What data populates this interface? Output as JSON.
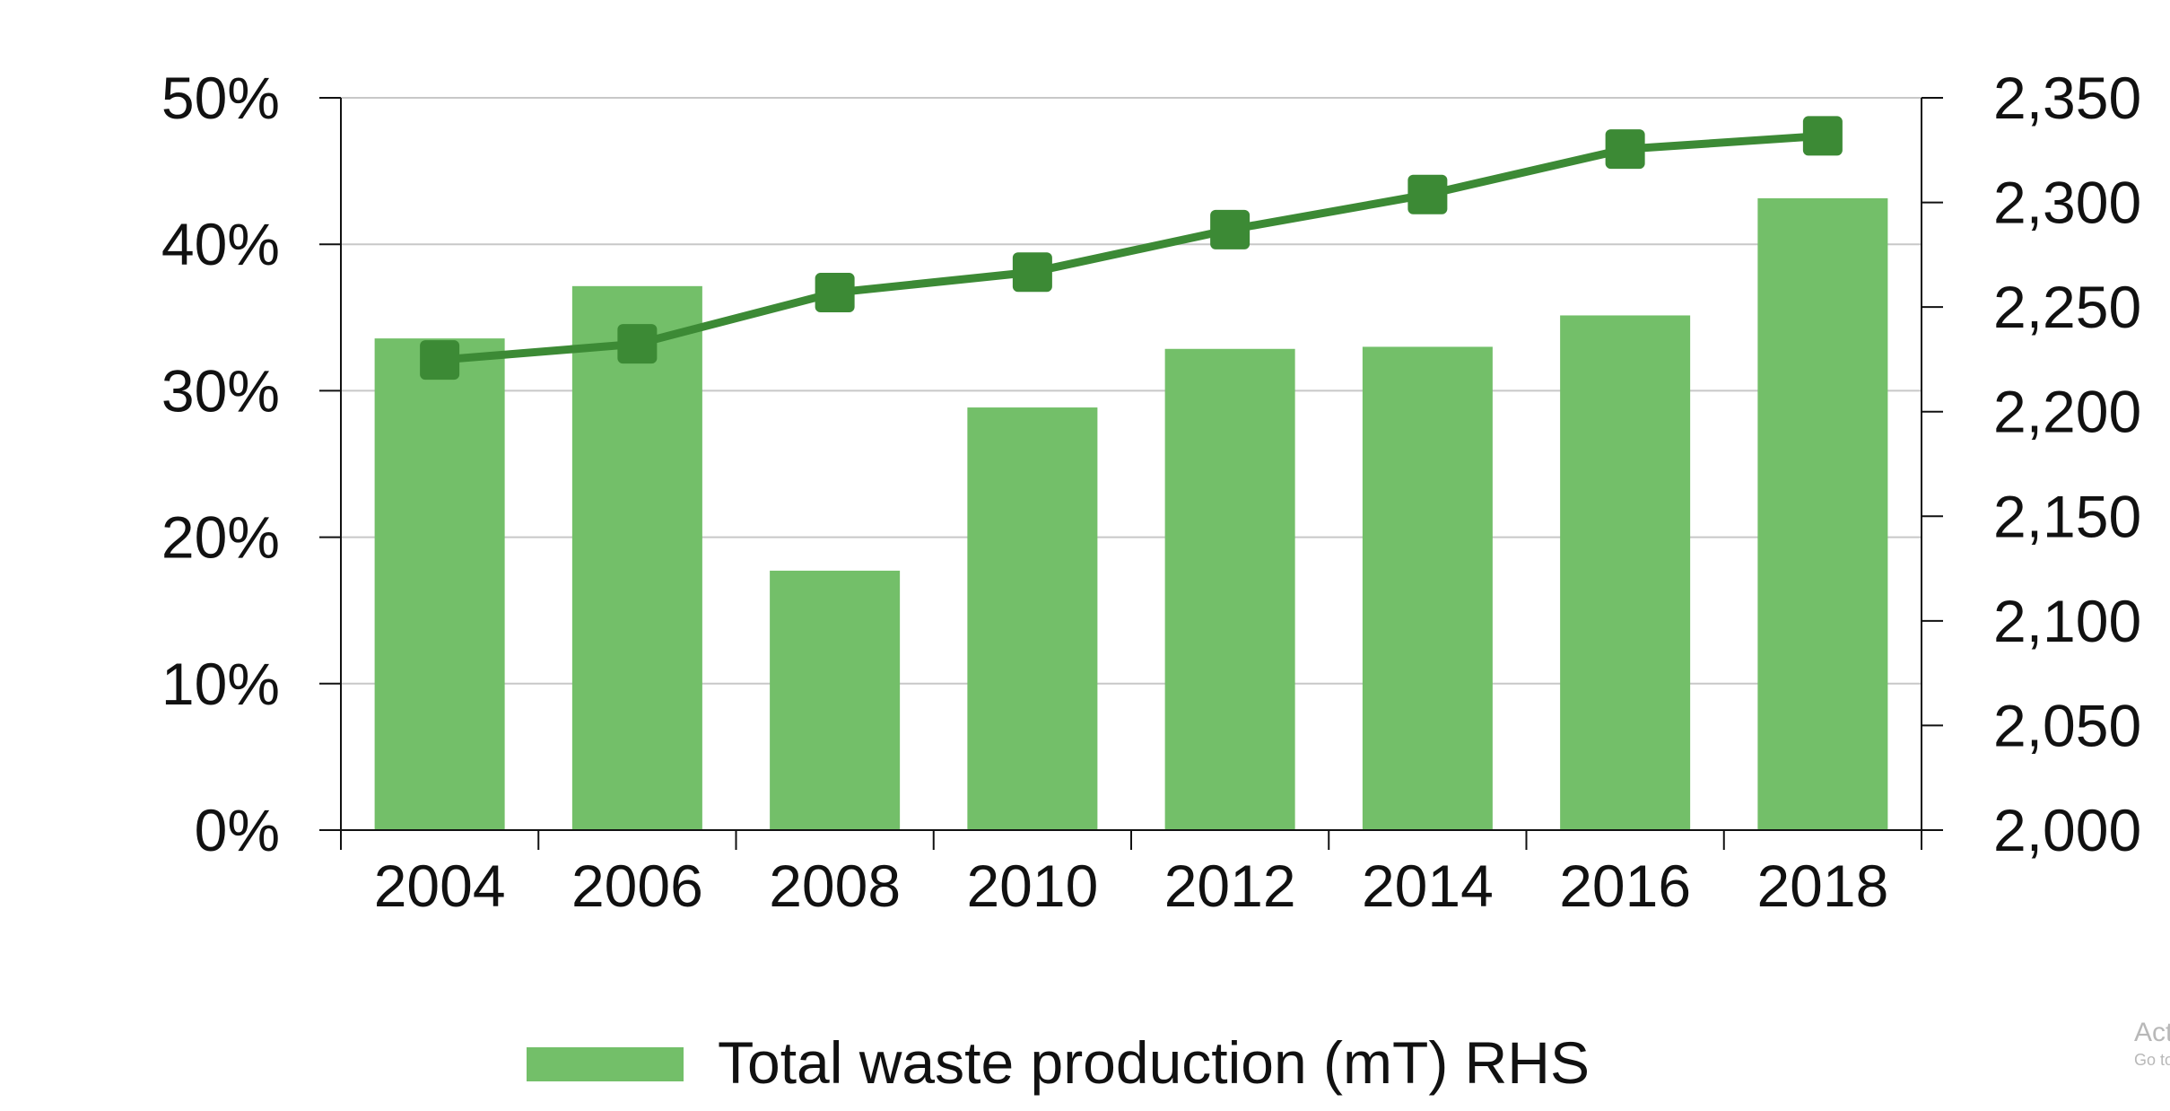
{
  "chart_data": {
    "type": "bar",
    "categories": [
      "2004",
      "2006",
      "2008",
      "2010",
      "2012",
      "2014",
      "2016",
      "2018"
    ],
    "series": [
      {
        "name": "Total waste production (mT) RHS",
        "kind": "bar",
        "axis": "right",
        "values": [
          2235,
          2260,
          2124,
          2202,
          2230,
          2231,
          2246,
          2302
        ],
        "color": "#73bf69"
      },
      {
        "name": "",
        "kind": "line",
        "axis": "left",
        "values": [
          32.1,
          33.2,
          36.7,
          38.1,
          41.0,
          43.4,
          46.5,
          47.4
        ],
        "color": "#3c8a35",
        "marker": "square"
      }
    ],
    "y_left": {
      "ylim": [
        0,
        50
      ],
      "ticks": [
        0,
        10,
        20,
        30,
        40,
        50
      ],
      "tick_labels": [
        "0%",
        "10%",
        "20%",
        "30%",
        "40%",
        "50%"
      ]
    },
    "y_right": {
      "ylim": [
        2000,
        2350
      ],
      "ticks": [
        2000,
        2050,
        2100,
        2150,
        2200,
        2250,
        2300,
        2350
      ],
      "tick_labels": [
        "2,000",
        "2,050",
        "2,100",
        "2,150",
        "2,200",
        "2,250",
        "2,300",
        "2,350"
      ]
    },
    "grid": true,
    "legend": {
      "position": "bottom",
      "entries": [
        "Total waste production (mT) RHS"
      ]
    },
    "title": "",
    "xlabel": "",
    "ylabel": ""
  },
  "watermark": {
    "line1": "Activate Windows",
    "line2": "Go to Settings to activate Windows."
  }
}
